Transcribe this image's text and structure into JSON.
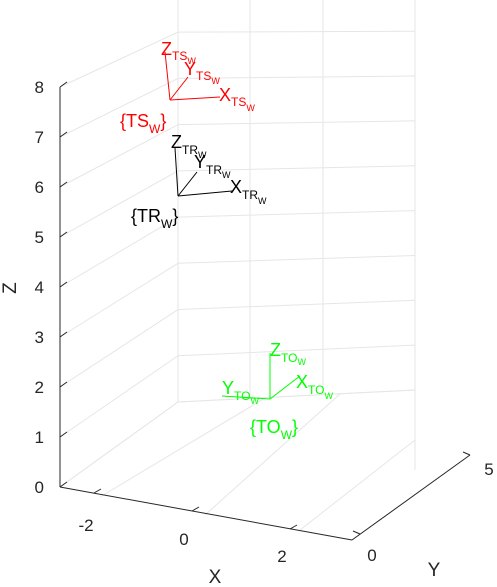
{
  "chart_data": {
    "type": "3d-line",
    "title": "",
    "xlabel": "X",
    "ylabel": "Y",
    "zlabel": "Z",
    "xticks": [
      "-2",
      "0",
      "2"
    ],
    "yticks": [
      "0",
      "5"
    ],
    "zticks": [
      "0",
      "1",
      "2",
      "3",
      "4",
      "5",
      "6",
      "7",
      "8"
    ],
    "zlim": [
      0,
      8
    ],
    "grid": true,
    "frames": [
      {
        "name": "TS",
        "subscript": "W",
        "color": "#ff0000",
        "origin_z": 7.75,
        "axis_labels": {
          "x": {
            "main": "X",
            "sub": "TS",
            "subsub": "W"
          },
          "y": {
            "main": "Y",
            "sub": "TS",
            "subsub": "W"
          },
          "z": {
            "main": "Z",
            "sub": "TS",
            "subsub": "W"
          }
        },
        "tag": {
          "open": "{TS",
          "sub": "W",
          "close": "}"
        }
      },
      {
        "name": "TR",
        "subscript": "W",
        "color": "#000000",
        "origin_z": 5.8,
        "axis_labels": {
          "x": {
            "main": "X",
            "sub": "TR",
            "subsub": "W"
          },
          "y": {
            "main": "Y",
            "sub": "TR",
            "subsub": "W"
          },
          "z": {
            "main": "Z",
            "sub": "TR",
            "subsub": "W"
          }
        },
        "tag": {
          "open": "{TR",
          "sub": "W",
          "close": "}"
        }
      },
      {
        "name": "TO",
        "subscript": "W",
        "color": "#00ff00",
        "origin_z": 1.7,
        "axis_labels": {
          "x": {
            "main": "X",
            "sub": "TO",
            "subsub": "W"
          },
          "y": {
            "main": "Y",
            "sub": "TO",
            "subsub": "W"
          },
          "z": {
            "main": "Z",
            "sub": "TO",
            "subsub": "W"
          }
        },
        "tag": {
          "open": "{TO",
          "sub": "W",
          "close": "}"
        }
      }
    ]
  }
}
